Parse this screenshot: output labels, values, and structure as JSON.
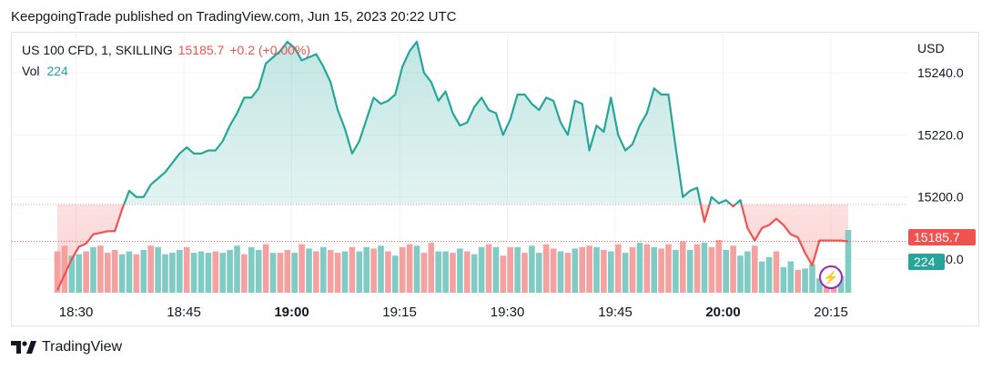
{
  "header": {
    "published": "KeepgoingTrade published on TradingView.com, Jun 15, 2023 20:22 UTC"
  },
  "legend": {
    "symbol": "US 100 CFD, 1, SKILLING",
    "last_price": "15185.7",
    "change": "+0.2 (+0.00%)",
    "volume_label": "Vol",
    "volume_value": "224"
  },
  "axis": {
    "currency": "USD"
  },
  "tags": {
    "price": "15185.7",
    "volume": "224"
  },
  "footer": {
    "brand": "TradingView"
  },
  "colors": {
    "up": "#26a69a",
    "down": "#ef5350",
    "grid": "#f0f3fa"
  },
  "chart_data": {
    "type": "line",
    "title": "US 100 CFD, 1, SKILLING",
    "x_tick_labels": [
      "18:30",
      "18:45",
      "19:00",
      "19:15",
      "19:30",
      "19:45",
      "20:00",
      "20:15"
    ],
    "y_tick_labels": [
      "15180.0",
      "15200.0",
      "15220.0",
      "15240.0"
    ],
    "ylim": [
      15168.9,
      15252.9
    ],
    "reference_price": 15197.6,
    "last_price": 15185.7,
    "series": [
      {
        "name": "",
        "x_minutes": [
          0,
          1,
          2,
          3,
          4,
          5,
          6,
          7,
          8,
          9,
          10,
          11,
          12,
          13,
          14,
          15,
          16,
          17,
          18,
          19,
          20,
          21,
          22,
          23,
          24,
          25,
          26,
          27,
          28,
          29,
          30,
          31,
          32,
          33,
          34,
          35,
          36,
          37,
          38,
          39,
          40,
          41,
          42,
          43,
          44,
          45,
          46,
          47,
          48,
          49,
          50,
          51,
          52,
          53,
          54,
          55,
          56,
          57,
          58,
          59,
          60,
          61,
          62,
          63,
          64,
          65,
          66,
          67,
          68,
          69,
          70,
          71,
          72,
          73,
          74,
          75,
          76,
          77,
          78,
          79,
          80,
          81,
          82,
          83,
          84,
          85,
          86,
          87,
          88,
          89,
          90,
          91,
          92,
          93,
          94,
          95,
          96,
          97,
          98,
          99,
          100,
          101,
          102,
          103,
          104,
          105,
          106,
          107,
          108,
          109,
          110
        ],
        "values": [
          15170,
          15175,
          15180,
          15184,
          15185,
          15188,
          15188.5,
          15189,
          15189,
          15196,
          15202,
          15200,
          15200,
          15204,
          15206,
          15208,
          15211,
          15214,
          15216,
          15214,
          15214,
          15215,
          15215,
          15218,
          15223,
          15227,
          15232,
          15232,
          15235,
          15243,
          15245,
          15247,
          15250,
          15248,
          15244,
          15245,
          15246,
          15242,
          15237,
          15228,
          15222,
          15214,
          15218,
          15225,
          15232,
          15230,
          15231,
          15233,
          15242,
          15247,
          15250,
          15240,
          15237,
          15231,
          15234,
          15227,
          15223,
          15224,
          15229,
          15232,
          15228,
          15227,
          15220,
          15225,
          15233,
          15233,
          15230,
          15228,
          15232,
          15231,
          15224,
          15220,
          15231,
          15230,
          15215,
          15223,
          15221,
          15232,
          15220,
          15215,
          15217,
          15223,
          15227,
          15235,
          15233,
          15233,
          15216,
          15200,
          15202,
          15203,
          15192,
          15200,
          15198,
          15199,
          15197,
          15199,
          15190,
          15186,
          15190,
          15191,
          15193,
          15191,
          15188,
          15187,
          15182,
          15178,
          15186,
          15186,
          15186,
          15186,
          15185.7
        ]
      }
    ],
    "volume": {
      "name": "Vol",
      "values": [
        209,
        213,
        206,
        207,
        209,
        212,
        213,
        208,
        210,
        207,
        209,
        207,
        210,
        213,
        212,
        207,
        208,
        210,
        212,
        208,
        209,
        208,
        209,
        208,
        210,
        213,
        207,
        212,
        210,
        214,
        208,
        208,
        210,
        208,
        214,
        211,
        209,
        212,
        210,
        208,
        209,
        212,
        209,
        212,
        211,
        213,
        209,
        206,
        212,
        214,
        213,
        208,
        215,
        209,
        209,
        208,
        211,
        209,
        207,
        212,
        214,
        212,
        206,
        212,
        212,
        208,
        213,
        208,
        214,
        211,
        209,
        208,
        211,
        212,
        213,
        212,
        210,
        209,
        214,
        208,
        212,
        215,
        214,
        212,
        211,
        214,
        210,
        216,
        210,
        214,
        215,
        212,
        217,
        210,
        213,
        206,
        209,
        213,
        202,
        205,
        209,
        198,
        202,
        196,
        197,
        200,
        190,
        196,
        199,
        192,
        224
      ],
      "direction": [
        0,
        0,
        1,
        1,
        0,
        1,
        0,
        0,
        0,
        1,
        1,
        0,
        1,
        0,
        1,
        1,
        1,
        1,
        0,
        1,
        1,
        1,
        0,
        1,
        1,
        1,
        0,
        1,
        1,
        0,
        1,
        0,
        0,
        1,
        0,
        1,
        0,
        1,
        0,
        0,
        1,
        0,
        1,
        1,
        0,
        1,
        0,
        1,
        0,
        0,
        1,
        0,
        0,
        1,
        1,
        0,
        1,
        0,
        1,
        1,
        0,
        1,
        0,
        0,
        1,
        0,
        1,
        1,
        0,
        0,
        1,
        0,
        1,
        0,
        0,
        1,
        0,
        1,
        0,
        1,
        0,
        1,
        0,
        1,
        0,
        0,
        1,
        0,
        1,
        0,
        1,
        0,
        0,
        1,
        0,
        1,
        1,
        0,
        1,
        1,
        0,
        1,
        1,
        0,
        1,
        1,
        1,
        0,
        0,
        1,
        1
      ]
    }
  }
}
